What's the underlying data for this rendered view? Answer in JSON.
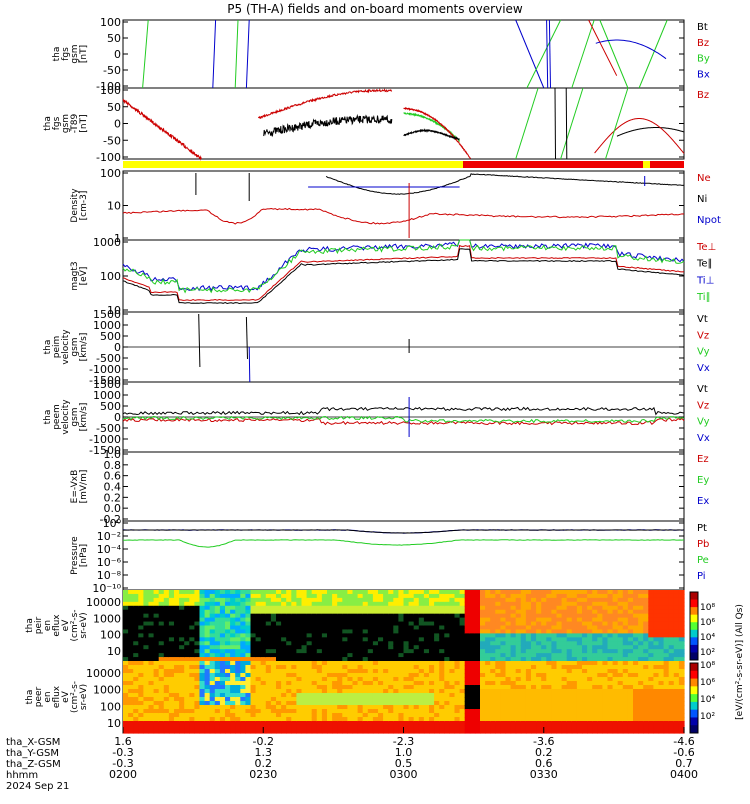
{
  "title": "P5 (TH-A) fields and on-board moments overview",
  "colors": {
    "black": "#000000",
    "red": "#cc0000",
    "green": "#22cc22",
    "blue": "#0000cc",
    "yellow": "#ffff00",
    "barred": "#ee0000"
  },
  "chart_data": [
    {
      "id": "fgs_gsm",
      "type": "line",
      "ylabel": [
        "tha",
        "fgs",
        "gsm",
        "[nT]"
      ],
      "ylim": [
        -100,
        100
      ],
      "yticks": [
        "100",
        "50",
        "0",
        "-50",
        "-100"
      ],
      "legend": [
        {
          "name": "Bt",
          "color": "black"
        },
        {
          "name": "Bz",
          "color": "red"
        },
        {
          "name": "By",
          "color": "green"
        },
        {
          "name": "Bx",
          "color": "blue"
        }
      ]
    },
    {
      "id": "fgs_gsm_t89",
      "type": "line",
      "ylabel": [
        "tha",
        "fgs",
        "gsm",
        "-T89",
        "[nT]"
      ],
      "ylim": [
        -125,
        125
      ],
      "yticks": [
        "100",
        "50",
        "0",
        "-50",
        "-100"
      ],
      "legend": [
        {
          "name": "Bz",
          "color": "red"
        }
      ]
    },
    {
      "id": "density",
      "type": "line",
      "log": true,
      "ylabel": [
        "Density",
        "[cm-3]"
      ],
      "ylim": [
        0.05,
        120
      ],
      "yticks": [
        "100",
        "10",
        "1"
      ],
      "legend": [
        {
          "name": "Ne",
          "color": "red"
        },
        {
          "name": "Ni",
          "color": "black"
        },
        {
          "name": "Npot",
          "color": "blue"
        }
      ]
    },
    {
      "id": "temperature",
      "type": "line",
      "log": true,
      "ylabel": [
        "magt3",
        "[eV]"
      ],
      "ylim": [
        9,
        3500
      ],
      "yticks": [
        "1000",
        "100",
        "10"
      ],
      "legend": [
        {
          "name": "Te⊥",
          "color": "red"
        },
        {
          "name": "Te∥",
          "color": "black"
        },
        {
          "name": "Ti⊥",
          "color": "blue"
        },
        {
          "name": "Ti∥",
          "color": "green"
        }
      ]
    },
    {
      "id": "peim_velocity",
      "type": "line",
      "ylabel": [
        "tha",
        "peim",
        "velocity",
        "gsm",
        "[km/s]"
      ],
      "ylim": [
        -1500,
        1500
      ],
      "yticks": [
        "1500",
        "1000",
        "500",
        "0",
        "-500",
        "-1000",
        "-1500"
      ],
      "legend": [
        {
          "name": "Vt",
          "color": "black"
        },
        {
          "name": "Vz",
          "color": "red"
        },
        {
          "name": "Vy",
          "color": "green"
        },
        {
          "name": "Vx",
          "color": "blue"
        }
      ]
    },
    {
      "id": "peem_velocity",
      "type": "line",
      "ylabel": [
        "tha",
        "peem",
        "velocity",
        "gsm",
        "[km/s]"
      ],
      "ylim": [
        -1500,
        1500
      ],
      "yticks": [
        "1500",
        "1000",
        "500",
        "0",
        "-500",
        "-1000",
        "-1500"
      ],
      "legend": [
        {
          "name": "Vt",
          "color": "black"
        },
        {
          "name": "Vz",
          "color": "red"
        },
        {
          "name": "Vy",
          "color": "green"
        },
        {
          "name": "Vx",
          "color": "blue"
        }
      ]
    },
    {
      "id": "efield",
      "type": "line",
      "ylabel": [
        "E=-VxB",
        "[mV/m]"
      ],
      "ylim": [
        -0.2,
        1.0
      ],
      "yticks": [
        "1.0",
        "0.8",
        "0.6",
        "0.4",
        "0.2",
        "0.0",
        "-0.2"
      ],
      "legend": [
        {
          "name": "Ez",
          "color": "red"
        },
        {
          "name": "Ey",
          "color": "green"
        },
        {
          "name": "Ex",
          "color": "blue"
        }
      ]
    },
    {
      "id": "pressure",
      "type": "line",
      "log": true,
      "ylabel": [
        "Pressure",
        "[nPa]"
      ],
      "ylim": [
        1e-10,
        1
      ],
      "yticks": [
        "10⁰",
        "10⁻²",
        "10⁻⁴",
        "10⁻⁶",
        "10⁻⁸",
        "10⁻¹⁰"
      ],
      "legend": [
        {
          "name": "Pt",
          "color": "black"
        },
        {
          "name": "Pb",
          "color": "red"
        },
        {
          "name": "Pe",
          "color": "green"
        },
        {
          "name": "Pi",
          "color": "blue"
        }
      ]
    },
    {
      "id": "peir_eflux",
      "type": "heatmap",
      "ylabel": [
        "tha",
        "peir",
        "en",
        "eflux",
        "eV",
        "(cm²-s-",
        "sr-eV)"
      ],
      "yticks": [
        "10000",
        "1000",
        "100",
        "10"
      ]
    },
    {
      "id": "peer_eflux",
      "type": "heatmap",
      "ylabel": [
        "tha",
        "peer",
        "en",
        "eflux",
        "eV",
        "(cm²-s-",
        "sr-eV)"
      ],
      "yticks": [
        "10000",
        "1000",
        "100",
        "10"
      ]
    }
  ],
  "colorbar": {
    "label": "[eV/(cm²-s-sr-eV)] (All Qs)",
    "ticks_top": [
      "10⁸",
      "10⁶",
      "10⁴",
      "10²"
    ],
    "ticks_bottom": [
      "10⁸",
      "10⁶",
      "10⁴",
      "10²"
    ]
  },
  "x_axis": {
    "labels": [
      "tha_X-GSM",
      "tha_Y-GSM",
      "tha_Z-GSM",
      "hhmm",
      "2024 Sep 21"
    ],
    "ticks": [
      {
        "x": "1.6",
        "y": "-0.3",
        "z": "-0.3",
        "t": "0200"
      },
      {
        "x": "-0.2",
        "y": "1.3",
        "z": "0.2",
        "t": "0230"
      },
      {
        "x": "-2.3",
        "y": "1.0",
        "z": "0.5",
        "t": "0300"
      },
      {
        "x": "-3.6",
        "y": "0.2",
        "z": "0.6",
        "t": "0330"
      },
      {
        "x": "-4.6",
        "y": "-0.6",
        "z": "0.7",
        "t": "0400"
      }
    ]
  }
}
